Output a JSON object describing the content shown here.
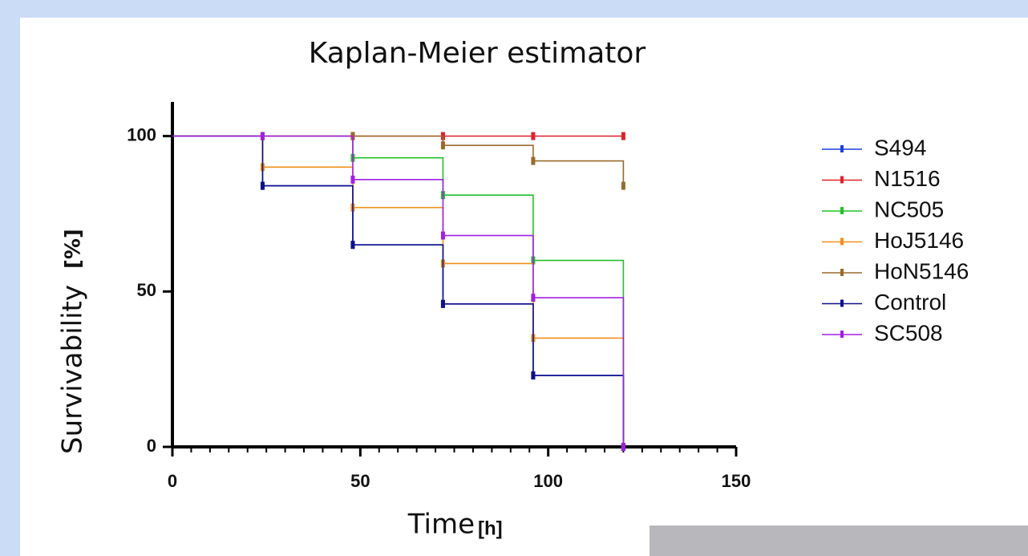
{
  "chart_data": {
    "type": "step",
    "title": "Kaplan-Meier estimator",
    "x_label": "Time",
    "x_unit": "[h]",
    "y_label": "Survivability",
    "y_unit": "[%]",
    "x": [
      0,
      24,
      48,
      72,
      96,
      120
    ],
    "series": [
      {
        "name": "S494",
        "color": "#1f3fe0",
        "values": [
          100,
          84,
          65,
          46,
          23,
          0
        ]
      },
      {
        "name": "N1516",
        "color": "#e0202a",
        "values": [
          100,
          100,
          100,
          100,
          100,
          100
        ]
      },
      {
        "name": "NC505",
        "color": "#22c02a",
        "values": [
          100,
          100,
          93,
          81,
          60,
          0
        ]
      },
      {
        "name": "HoJ5146",
        "color": "#f0901a",
        "values": [
          100,
          90,
          77,
          59,
          35,
          0
        ]
      },
      {
        "name": "HoN5146",
        "color": "#9a6a2a",
        "values": [
          100,
          100,
          100,
          97,
          92,
          84
        ]
      },
      {
        "name": "Control",
        "color": "#10108a",
        "values": [
          100,
          84,
          65,
          46,
          23,
          0
        ]
      },
      {
        "name": "SC508",
        "color": "#a020e0",
        "values": [
          100,
          100,
          86,
          68,
          48,
          0
        ]
      }
    ],
    "xlim": [
      0,
      150
    ],
    "xticks": [
      0,
      50,
      100,
      150
    ],
    "ylim": [
      0,
      111
    ],
    "yticks": [
      0,
      50,
      100
    ],
    "legend": "right"
  }
}
